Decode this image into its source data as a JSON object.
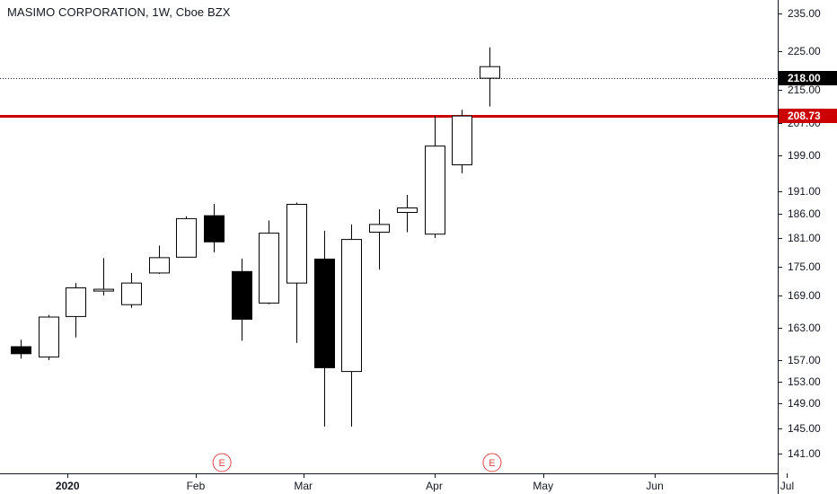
{
  "header": {
    "title": "MASIMO CORPORATION, 1W, Cboe BZX"
  },
  "chart_data": {
    "type": "candlestick",
    "title": "MASIMO CORPORATION, 1W, Cboe BZX",
    "symbol": "MASIMO CORPORATION",
    "interval": "1W",
    "exchange": "Cboe BZX",
    "y_ticks": [
      141,
      145,
      149,
      153,
      157,
      163,
      169,
      175,
      181,
      186,
      191,
      199,
      207,
      215,
      225,
      235
    ],
    "x_ticks": [
      {
        "label": "2020",
        "index": 1.7,
        "bold": true
      },
      {
        "label": "Feb",
        "index": 6.35,
        "bold": false
      },
      {
        "label": "Mar",
        "index": 10.25,
        "bold": false
      },
      {
        "label": "Apr",
        "index": 15.0,
        "bold": false
      },
      {
        "label": "May",
        "index": 18.95,
        "bold": false
      },
      {
        "label": "Jun",
        "index": 23.0,
        "bold": false
      },
      {
        "label": "Jul",
        "index": 27.8,
        "bold": false
      }
    ],
    "candles": [
      {
        "open": 159.5,
        "high": 160.8,
        "low": 157.3,
        "close": 158.2
      },
      {
        "open": 157.6,
        "high": 165.4,
        "low": 157.0,
        "close": 165.0
      },
      {
        "open": 165.1,
        "high": 171.6,
        "low": 161.2,
        "close": 170.6
      },
      {
        "open": 170.0,
        "high": 176.8,
        "low": 169.0,
        "close": 170.3
      },
      {
        "open": 167.3,
        "high": 173.7,
        "low": 166.7,
        "close": 171.6
      },
      {
        "open": 173.7,
        "high": 179.4,
        "low": 173.5,
        "close": 176.9
      },
      {
        "open": 177.0,
        "high": 185.5,
        "low": 177.0,
        "close": 185.0
      },
      {
        "open": 185.6,
        "high": 188.2,
        "low": 178.0,
        "close": 180.2
      },
      {
        "open": 174.0,
        "high": 176.7,
        "low": 160.6,
        "close": 164.6
      },
      {
        "open": 167.6,
        "high": 184.6,
        "low": 167.4,
        "close": 182.0
      },
      {
        "open": 171.6,
        "high": 188.5,
        "low": 160.2,
        "close": 188.1
      },
      {
        "open": 176.6,
        "high": 182.5,
        "low": 145.3,
        "close": 155.6
      },
      {
        "open": 154.9,
        "high": 183.8,
        "low": 145.3,
        "close": 180.7
      },
      {
        "open": 182.2,
        "high": 187.0,
        "low": 174.4,
        "close": 183.8
      },
      {
        "open": 186.3,
        "high": 190.2,
        "low": 182.2,
        "close": 187.3
      },
      {
        "open": 181.8,
        "high": 208.7,
        "low": 181.0,
        "close": 201.3
      },
      {
        "open": 196.9,
        "high": 210.2,
        "low": 195.0,
        "close": 208.7
      },
      {
        "open": 218.0,
        "high": 226.0,
        "low": 211.0,
        "close": 221.0
      }
    ],
    "price_lines": [
      {
        "value": 218.0,
        "label": "218.00",
        "color": "#131722",
        "style": "dotted"
      },
      {
        "value": 208.73,
        "label": "208.73",
        "color": "#cc0000",
        "style": "solid"
      }
    ],
    "earnings_markers": [
      {
        "index": 7.3,
        "label": "E"
      },
      {
        "index": 17.1,
        "label": "E"
      }
    ],
    "colors": {
      "up_fill": "#ffffff",
      "down_fill": "#000000",
      "candle_border": "#000000",
      "hline_red": "#cc0000",
      "current_tag": "#000000",
      "earnings": "#e04848"
    }
  }
}
